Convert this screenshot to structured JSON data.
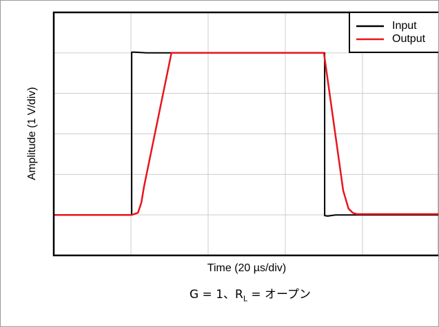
{
  "chart_data": {
    "type": "line",
    "xlabel": "Time (20 µs/div)",
    "ylabel": "Amplitude (1 V/div)",
    "caption": {
      "main": "G = 1、R",
      "subscript": "L",
      "rest": " = オープン"
    },
    "xlim": [
      0,
      100
    ],
    "xticks": [
      0,
      20,
      40,
      60,
      80,
      100
    ],
    "ylim": [
      0,
      6
    ],
    "yticks": [
      0,
      1,
      2,
      3,
      4,
      5,
      6
    ],
    "grid": true,
    "legend": "upper right",
    "series": [
      {
        "name": "Input",
        "color": "#000000",
        "x": [
          0,
          20.2,
          20.2,
          21,
          24,
          70,
          70.2,
          70.2,
          71,
          73,
          100
        ],
        "values": [
          1.0,
          1.0,
          5.02,
          5.02,
          5.0,
          5.0,
          5.0,
          0.98,
          0.97,
          1.0,
          1.0
        ]
      },
      {
        "name": "Output",
        "color": "#e8141c",
        "x": [
          0,
          20.2,
          21.8,
          22.7,
          23.4,
          30.5,
          70,
          75,
          76.4,
          77.5,
          78.5,
          100
        ],
        "values": [
          1.0,
          1.0,
          1.05,
          1.3,
          1.7,
          5.0,
          5.0,
          1.6,
          1.15,
          1.05,
          1.02,
          1.02
        ]
      }
    ]
  }
}
